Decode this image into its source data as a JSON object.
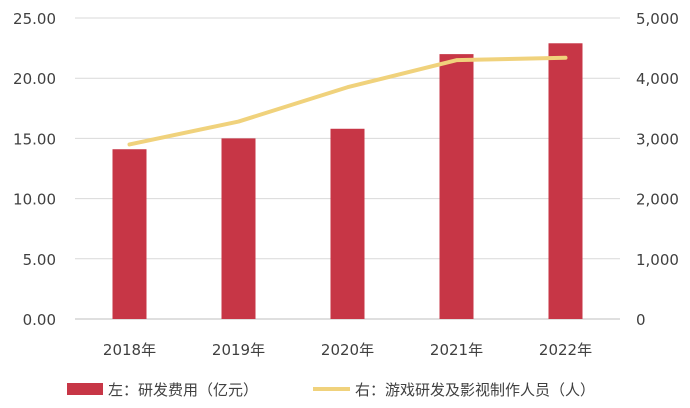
{
  "chart_data": {
    "type": "bar",
    "categories": [
      "2018年",
      "2019年",
      "2020年",
      "2021年",
      "2022年"
    ],
    "series": [
      {
        "name": "左：研发费用（亿元）",
        "type": "bar",
        "axis": "left",
        "values": [
          14.1,
          15.0,
          15.8,
          22.0,
          22.9
        ],
        "color": "#C73646"
      },
      {
        "name": "右：游戏研发及影视制作人员（人）",
        "type": "line",
        "axis": "right",
        "values": [
          2900,
          3280,
          3850,
          4300,
          4340
        ],
        "color": "#F0D27C"
      }
    ],
    "y_left": {
      "min": 0,
      "max": 25,
      "ticks": [
        "0.00",
        "5.00",
        "10.00",
        "15.00",
        "20.00",
        "25.00"
      ]
    },
    "y_right": {
      "min": 0,
      "max": 5000,
      "ticks": [
        "0",
        "1,000",
        "2,000",
        "3,000",
        "4,000",
        "5,000"
      ]
    },
    "grid": true,
    "legend": "bottom",
    "title": ""
  }
}
